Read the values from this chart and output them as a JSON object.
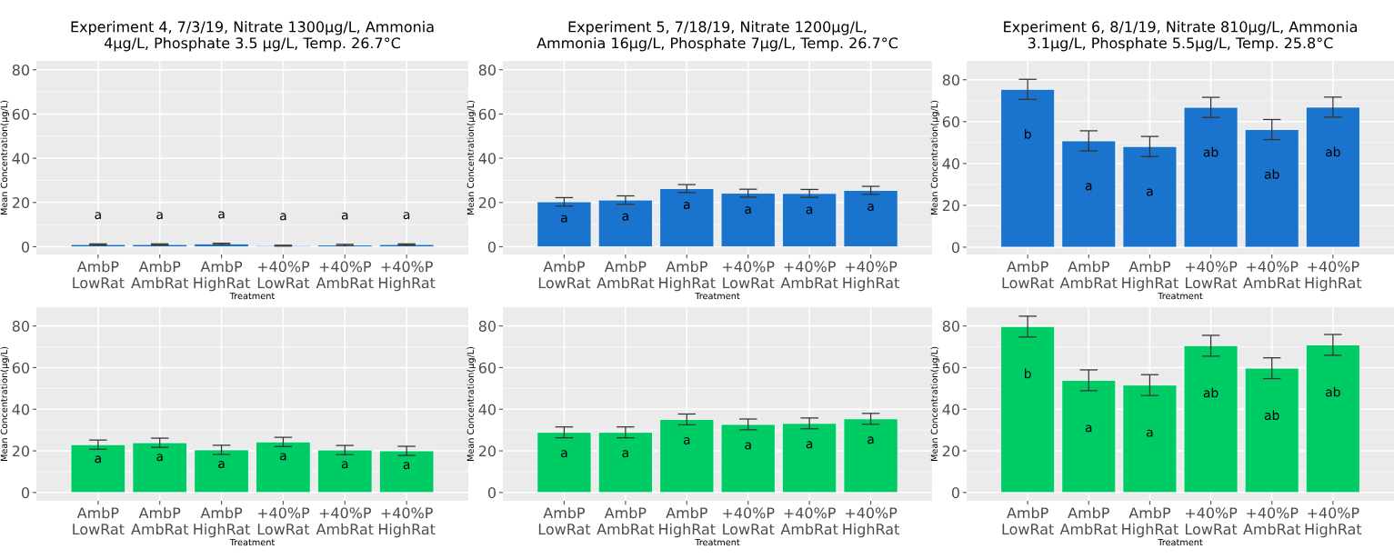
{
  "chart_data": [
    {
      "type": "bar",
      "title": "Experiment 4, 7/3/19, Nitrate 1300µg/L, Ammonia\n4µg/L, Phosphate 3.5 µg/L, Temp. 26.7°C",
      "xlabel": "Treatment",
      "ylabel": "Mean Concentration(µg/L)",
      "categories": [
        "AmbP\nLowRat",
        "AmbP\nAmbRat",
        "AmbP\nHighRat",
        "+40%P\nLowRat",
        "+40%P\nAmbRat",
        "+40%P\nHighRat"
      ],
      "values": [
        1.0,
        1.0,
        1.3,
        0.5,
        0.8,
        1.0
      ],
      "errors": [
        0.3,
        0.3,
        0.3,
        0.2,
        0.3,
        0.3
      ],
      "value_labels": [
        "a",
        "a",
        "a",
        "a",
        "a",
        "a"
      ],
      "color": "#1a73cc",
      "ylim": [
        -3.5,
        84
      ],
      "yticks": [
        0,
        20,
        40,
        60,
        80
      ],
      "grid": true
    },
    {
      "type": "bar",
      "title": "Experiment 5, 7/18/19, Nitrate 1200µg/L,\nAmmonia 16µg/L, Phosphate 7µg/L, Temp. 26.7°C",
      "xlabel": "Treatment",
      "ylabel": "Mean Concentration(µg/L)",
      "categories": [
        "AmbP\nLowRat",
        "AmbP\nAmbRat",
        "AmbP\nHighRat",
        "+40%P\nLowRat",
        "+40%P\nAmbRat",
        "+40%P\nHighRat"
      ],
      "values": [
        20.3,
        21.1,
        26.3,
        24.2,
        24.1,
        25.5
      ],
      "errors": [
        1.9,
        1.9,
        1.8,
        1.8,
        1.8,
        1.8
      ],
      "value_labels": [
        "a",
        "a",
        "a",
        "a",
        "a",
        "a"
      ],
      "color": "#1a73cc",
      "ylim": [
        -3.5,
        84
      ],
      "yticks": [
        0,
        20,
        40,
        60,
        80
      ],
      "grid": true
    },
    {
      "type": "bar",
      "title": "Experiment 6, 8/1/19, Nitrate 810µg/L, Ammonia\n3.1µg/L, Phosphate 5.5µg/L, Temp. 25.8°C",
      "xlabel": "Treatment",
      "ylabel": "Mean Concentration(µg/L)",
      "categories": [
        "AmbP\nLowRat",
        "AmbP\nAmbRat",
        "AmbP\nHighRat",
        "+40%P\nLowRat",
        "+40%P\nAmbRat",
        "+40%P\nHighRat"
      ],
      "values": [
        75.4,
        50.8,
        48.1,
        66.8,
        56.2,
        66.9
      ],
      "errors": [
        4.8,
        4.8,
        4.8,
        4.8,
        4.8,
        4.8
      ],
      "value_labels": [
        "b",
        "a",
        "a",
        "ab",
        "ab",
        "ab"
      ],
      "color": "#1a73cc",
      "ylim": [
        -3.5,
        89
      ],
      "yticks": [
        0,
        20,
        40,
        60,
        80
      ],
      "grid": true
    },
    {
      "type": "bar",
      "xlabel": "Treatment",
      "ylabel": "Mean Concentration(µg/L)",
      "categories": [
        "AmbP\nLowRat",
        "AmbP\nAmbRat",
        "AmbP\nHighRat",
        "+40%P\nLowRat",
        "+40%P\nAmbRat",
        "+40%P\nHighRat"
      ],
      "values": [
        23.0,
        23.9,
        20.5,
        24.3,
        20.4,
        20.0
      ],
      "errors": [
        2.2,
        2.2,
        2.2,
        2.2,
        2.2,
        2.2
      ],
      "value_labels": [
        "a",
        "a",
        "a",
        "a",
        "a",
        "a"
      ],
      "color": "#00cc66",
      "ylim": [
        -4,
        89
      ],
      "yticks": [
        0,
        20,
        40,
        60,
        80
      ],
      "grid": true
    },
    {
      "type": "bar",
      "xlabel": "Treatment",
      "ylabel": "Mean Concentration(µg/L)",
      "categories": [
        "AmbP\nLowRat",
        "AmbP\nAmbRat",
        "AmbP\nHighRat",
        "+40%P\nLowRat",
        "+40%P\nAmbRat",
        "+40%P\nHighRat"
      ],
      "values": [
        28.9,
        28.9,
        35.1,
        32.7,
        33.2,
        35.4
      ],
      "errors": [
        2.6,
        2.6,
        2.6,
        2.6,
        2.6,
        2.6
      ],
      "value_labels": [
        "a",
        "a",
        "a",
        "a",
        "a",
        "a"
      ],
      "color": "#00cc66",
      "ylim": [
        -4,
        89
      ],
      "yticks": [
        0,
        20,
        40,
        60,
        80
      ],
      "grid": true
    },
    {
      "type": "bar",
      "xlabel": "Treatment",
      "ylabel": "Mean Concentration(µg/L)",
      "categories": [
        "AmbP\nLowRat",
        "AmbP\nAmbRat",
        "AmbP\nHighRat",
        "+40%P\nLowRat",
        "+40%P\nAmbRat",
        "+40%P\nHighRat"
      ],
      "values": [
        79.7,
        53.9,
        51.6,
        70.5,
        59.7,
        70.9
      ],
      "errors": [
        5.0,
        5.0,
        5.0,
        5.0,
        5.0,
        5.0
      ],
      "value_labels": [
        "b",
        "a",
        "a",
        "ab",
        "ab",
        "ab"
      ],
      "color": "#00cc66",
      "ylim": [
        -4,
        89
      ],
      "yticks": [
        0,
        20,
        40,
        60,
        80
      ],
      "grid": true
    }
  ]
}
